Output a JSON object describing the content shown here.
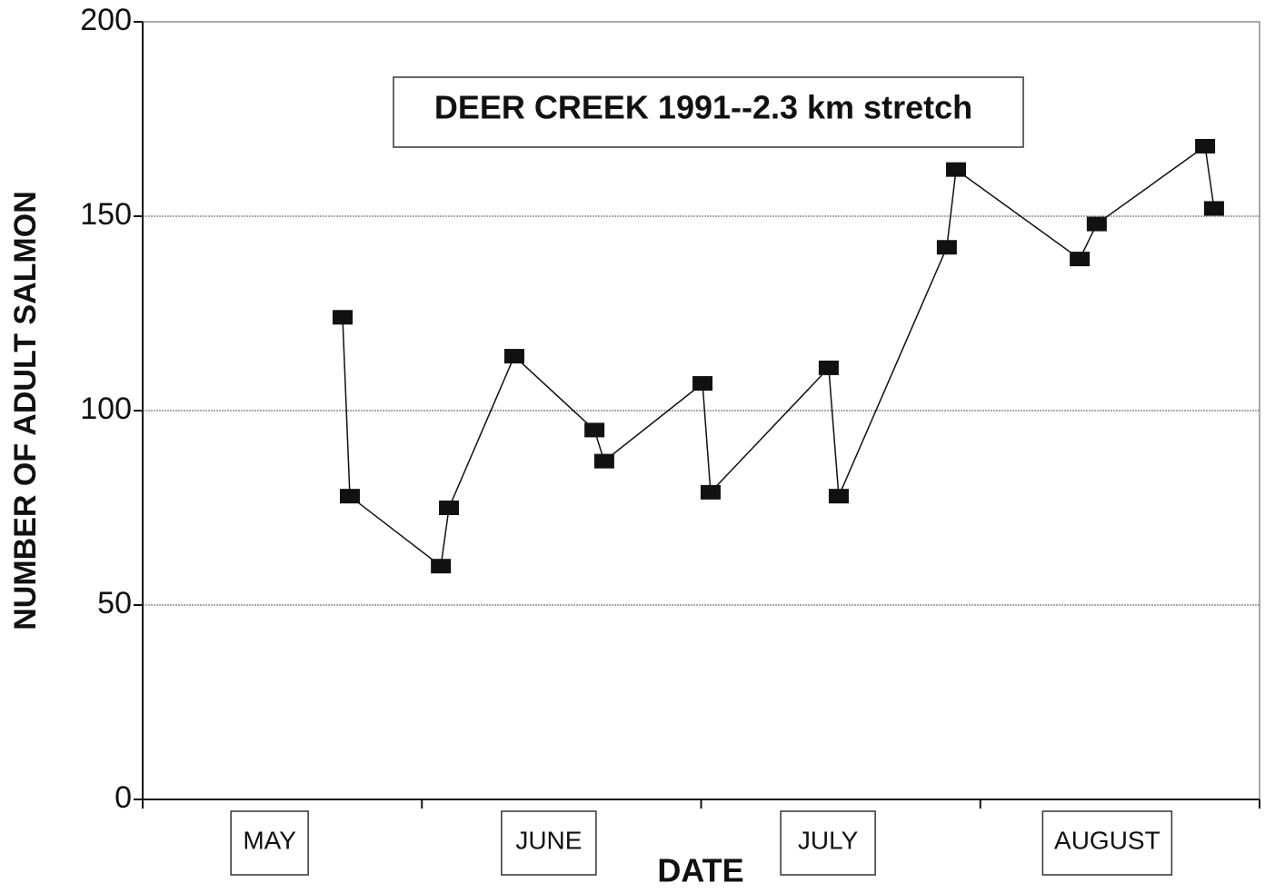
{
  "chart_data": {
    "type": "line",
    "title": "DEER CREEK 1991--2.3 km stretch",
    "x_label": "DATE",
    "y_label": "NUMBER OF ADULT SALMON",
    "categories": [
      "MAY",
      "JUNE",
      "JULY",
      "AUGUST"
    ],
    "xlim": [
      0,
      4
    ],
    "xticks": [
      0,
      1,
      2,
      3,
      4
    ],
    "ylim": [
      0,
      200
    ],
    "yticks": [
      0,
      50,
      100,
      150,
      200
    ],
    "grid": true,
    "series": [
      {
        "name": "salmon",
        "color": "#111111",
        "x": [
          0.716,
          0.742,
          1.068,
          1.097,
          1.331,
          1.618,
          1.653,
          2.005,
          2.034,
          2.457,
          2.493,
          2.88,
          2.913,
          3.356,
          3.417,
          3.805,
          3.837
        ],
        "values": [
          124,
          78,
          60,
          75,
          114,
          95,
          87,
          107,
          79,
          111,
          78,
          142,
          162,
          139,
          148,
          168,
          152
        ]
      }
    ]
  }
}
